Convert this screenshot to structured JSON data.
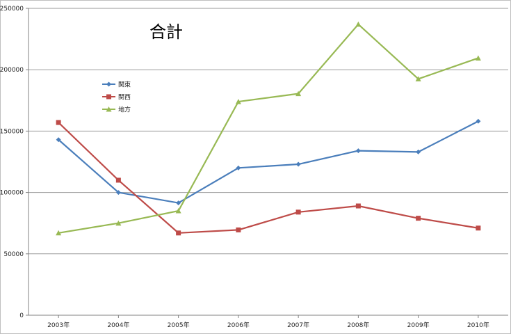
{
  "chart_data": {
    "type": "line",
    "title": "合計",
    "categories": [
      "2003年",
      "2004年",
      "2005年",
      "2006年",
      "2007年",
      "2008年",
      "2009年",
      "2010年"
    ],
    "series": [
      {
        "name": "関東",
        "color": "#4a7ebb",
        "marker": "diamond",
        "values": [
          143000,
          100000,
          91500,
          120000,
          123000,
          134000,
          133000,
          158000
        ]
      },
      {
        "name": "関西",
        "color": "#be4b48",
        "marker": "square",
        "values": [
          157000,
          110000,
          67000,
          69500,
          84000,
          89000,
          79000,
          71000
        ]
      },
      {
        "name": "地方",
        "color": "#98b954",
        "marker": "triangle",
        "values": [
          67000,
          75000,
          85000,
          174000,
          180500,
          237000,
          192500,
          209500
        ]
      }
    ],
    "ylim": [
      0,
      250000
    ],
    "yticks": [
      "0",
      "50000",
      "100000",
      "150000",
      "200000",
      "250000"
    ],
    "grid": true,
    "legend_position": "upper-left"
  }
}
